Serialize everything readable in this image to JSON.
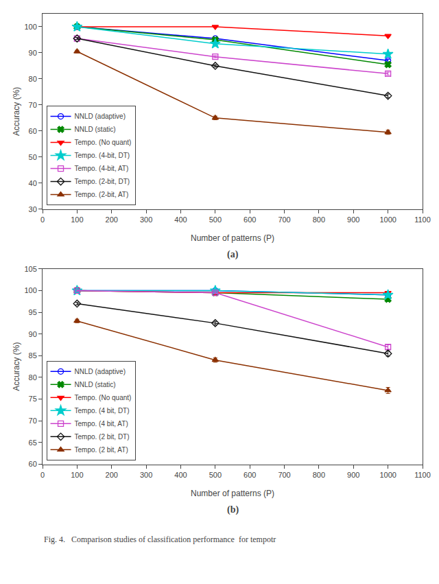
{
  "chart_data": [
    {
      "type": "line",
      "x": [
        100,
        500,
        1000
      ],
      "xlabel": "Number of patterns (P)",
      "ylabel": "Accuracy (%)",
      "xlim": [
        0,
        1100
      ],
      "xticks": [
        0,
        100,
        200,
        300,
        400,
        500,
        600,
        700,
        800,
        900,
        1000,
        1100
      ],
      "ylim": [
        30,
        105
      ],
      "yticks": [
        30,
        40,
        50,
        60,
        70,
        80,
        90,
        100
      ],
      "grid": false,
      "legend": "lower left",
      "annotations": [
        "(a)"
      ],
      "series": [
        {
          "name": "NNLD (adaptive)",
          "color": "#0000FF",
          "marker": "circle-open",
          "line_style": "solid",
          "values": [
            100.0,
            95.5,
            87.0
          ],
          "errors": [
            0.3,
            0.4,
            0.5
          ]
        },
        {
          "name": "NNLD (static)",
          "color": "#008800",
          "marker": "x",
          "line_style": "solid",
          "values": [
            100.0,
            95.0,
            85.5
          ],
          "errors": [
            0.3,
            0.4,
            0.5
          ]
        },
        {
          "name": "Tempo. (No quant)",
          "color": "#FF0000",
          "marker": "triangle-down",
          "line_style": "solid",
          "values": [
            100.0,
            100.0,
            96.5
          ],
          "errors": [
            0.2,
            0.3,
            0.4
          ]
        },
        {
          "name": "Tempo. (4-bit, DT)",
          "color": "#00CCCC",
          "marker": "star",
          "line_style": "solid",
          "values": [
            100.0,
            93.5,
            89.5
          ],
          "errors": [
            0.3,
            0.4,
            0.5
          ]
        },
        {
          "name": "Tempo. (4-bit, AT)",
          "color": "#CC44CC",
          "marker": "square-open",
          "line_style": "solid",
          "values": [
            95.5,
            88.5,
            82.0
          ],
          "errors": [
            0.3,
            0.4,
            0.6
          ]
        },
        {
          "name": "Tempo. (2-bit, DT)",
          "color": "#111111",
          "marker": "diamond-open",
          "line_style": "solid",
          "values": [
            95.5,
            85.0,
            73.5
          ],
          "errors": [
            0.4,
            0.5,
            0.7
          ]
        },
        {
          "name": "Tempo. (2-bit, AT)",
          "color": "#8B3000",
          "marker": "triangle-up",
          "line_style": "solid",
          "values": [
            90.5,
            65.0,
            59.5
          ],
          "errors": [
            0.5,
            0.7,
            0.8
          ]
        }
      ]
    },
    {
      "type": "line",
      "x": [
        100,
        500,
        1000
      ],
      "xlabel": "Number of patterns (P)",
      "ylabel": "Accuracy (%)",
      "xlim": [
        0,
        1100
      ],
      "xticks": [
        0,
        100,
        200,
        300,
        400,
        500,
        600,
        700,
        800,
        900,
        1000,
        1100
      ],
      "ylim": [
        60,
        105
      ],
      "yticks": [
        60,
        65,
        70,
        75,
        80,
        85,
        90,
        95,
        100,
        105
      ],
      "grid": false,
      "legend": "lower left",
      "annotations": [
        "(b)",
        "Fig. 4.   Comparison studies of classification performance  for tempotr"
      ],
      "series": [
        {
          "name": "NNLD (adaptive)",
          "color": "#0000FF",
          "marker": "circle-open",
          "line_style": "solid",
          "values": [
            100.0,
            100.0,
            99.0
          ],
          "errors": [
            0.2,
            0.2,
            0.3
          ]
        },
        {
          "name": "NNLD (static)",
          "color": "#008800",
          "marker": "x",
          "line_style": "solid",
          "values": [
            100.0,
            99.5,
            98.0
          ],
          "errors": [
            0.2,
            0.2,
            0.3
          ]
        },
        {
          "name": "Tempo. (No quant)",
          "color": "#FF0000",
          "marker": "triangle-down",
          "line_style": "solid",
          "values": [
            100.0,
            99.5,
            99.5
          ],
          "errors": [
            0.2,
            0.2,
            0.3
          ]
        },
        {
          "name": "Tempo. (4 bit, DT)",
          "color": "#00CCCC",
          "marker": "star",
          "line_style": "solid",
          "values": [
            100.0,
            100.0,
            99.0
          ],
          "errors": [
            0.2,
            0.2,
            0.3
          ]
        },
        {
          "name": "Tempo. (4 bit, AT)",
          "color": "#CC44CC",
          "marker": "square-open",
          "line_style": "solid",
          "values": [
            100.0,
            99.5,
            87.0
          ],
          "errors": [
            0.2,
            0.3,
            0.5
          ]
        },
        {
          "name": "Tempo. (2 bit, DT)",
          "color": "#111111",
          "marker": "diamond-open",
          "line_style": "solid",
          "values": [
            97.0,
            92.5,
            85.5
          ],
          "errors": [
            0.3,
            0.4,
            0.6
          ]
        },
        {
          "name": "Tempo. (2 bit, AT)",
          "color": "#8B3000",
          "marker": "triangle-up",
          "line_style": "solid",
          "values": [
            93.0,
            84.0,
            77.0
          ],
          "errors": [
            0.4,
            0.5,
            0.7
          ]
        }
      ]
    }
  ]
}
